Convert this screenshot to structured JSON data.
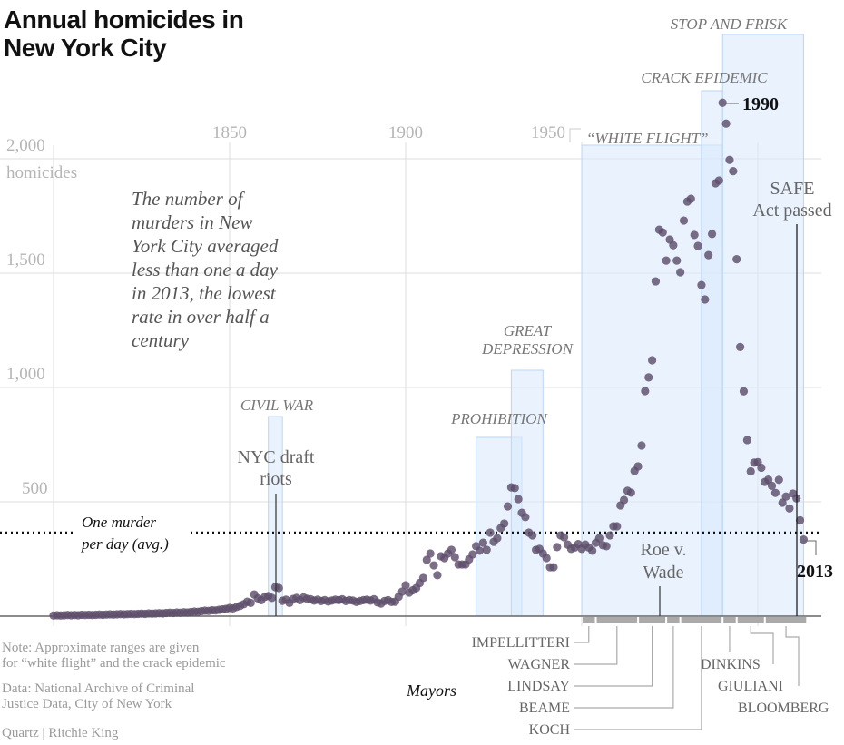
{
  "chart_data": {
    "type": "scatter",
    "title": "Annual homicides in New York City",
    "ylabel": "homicides",
    "xlim": [
      1797,
      2015
    ],
    "ylim": [
      0,
      2100
    ],
    "x_ticks": [
      "1850",
      "1900",
      "1950"
    ],
    "y_ticks": [
      "500",
      "1,000",
      "1,500",
      "2,000"
    ],
    "grid": true,
    "point_color": "#5e4e6b",
    "band_color": "#dbeafc",
    "start_year": 1800,
    "values": [
      3,
      4,
      3,
      4,
      5,
      4,
      5,
      4,
      6,
      5,
      6,
      5,
      6,
      7,
      6,
      7,
      8,
      7,
      8,
      9,
      8,
      9,
      10,
      9,
      10,
      11,
      10,
      12,
      11,
      12,
      13,
      12,
      14,
      15,
      14,
      16,
      15,
      17,
      16,
      18,
      20,
      19,
      22,
      24,
      23,
      26,
      25,
      28,
      30,
      32,
      36,
      34,
      40,
      45,
      52,
      63,
      58,
      95,
      78,
      70,
      84,
      88,
      80,
      127,
      123,
      67,
      72,
      58,
      75,
      80,
      70,
      82,
      76,
      74,
      68,
      72,
      66,
      70,
      64,
      68,
      72,
      70,
      74,
      66,
      70,
      68,
      62,
      66,
      70,
      72,
      68,
      74,
      60,
      55,
      66,
      70,
      62,
      63,
      85,
      107,
      135,
      103,
      113,
      123,
      145,
      167,
      246,
      274,
      222,
      179,
      262,
      254,
      274,
      290,
      258,
      226,
      226,
      226,
      248,
      270,
      306,
      286,
      321,
      290,
      365,
      325,
      341,
      385,
      405,
      480,
      563,
      560,
      512,
      452,
      433,
      365,
      353,
      290,
      294,
      274,
      254,
      214,
      214,
      302,
      353,
      345,
      313,
      294,
      300,
      315,
      294,
      313,
      300,
      286,
      321,
      341,
      310,
      306,
      353,
      393,
      393,
      484,
      508,
      548,
      540,
      635,
      655,
      746,
      984,
      1044,
      1119,
      1464,
      1690,
      1678,
      1555,
      1647,
      1622,
      1555,
      1504,
      1730,
      1813,
      1825,
      1667,
      1619,
      1448,
      1385,
      1579,
      1671,
      1893,
      1905,
      2245,
      2154,
      1995,
      1946,
      1561,
      1177,
      983,
      770,
      633,
      671,
      673,
      649,
      587,
      597,
      570,
      539,
      596,
      496,
      523,
      471,
      536,
      515,
      419,
      335
    ],
    "reference_line": {
      "value": 365,
      "label_line1": "One murder",
      "label_line2": "per day (avg.)"
    },
    "bands": [
      {
        "label": "CIVIL WAR",
        "start": 1861,
        "end": 1865
      },
      {
        "label": "PROHIBITION",
        "start": 1920,
        "end": 1933
      },
      {
        "label_line1": "GREAT",
        "label_line2": "DEPRESSION",
        "start": 1930,
        "end": 1939
      },
      {
        "label": "“WHITE FLIGHT”",
        "start": 1950,
        "end": 1990
      },
      {
        "label": "CRACK EPIDEMIC",
        "start": 1984,
        "end": 1990
      },
      {
        "label": "STOP AND FRISK",
        "start": 1990,
        "end": 2013
      }
    ],
    "annotations": {
      "draft_riots": {
        "line1": "NYC draft",
        "line2": "riots",
        "year": 1863
      },
      "roe": {
        "line1": "Roe v.",
        "line2": "Wade",
        "year": 1973
      },
      "safe": {
        "line1": "SAFE",
        "line2": "Act passed",
        "year": 2013
      },
      "peak": {
        "label": "1990",
        "year": 1990
      },
      "last": {
        "label": "2013",
        "year": 2013
      },
      "description": [
        "The number of",
        "murders in New",
        "York City averaged",
        "less than one a day",
        "in 2013, the lowest",
        "rate in over half a",
        "century"
      ]
    },
    "mayors_label": "Mayors",
    "mayors": [
      {
        "name": "IMPELLITTERI",
        "start": 1950,
        "end": 1953
      },
      {
        "name": "WAGNER",
        "start": 1954,
        "end": 1965
      },
      {
        "name": "LINDSAY",
        "start": 1966,
        "end": 1973
      },
      {
        "name": "BEAME",
        "start": 1974,
        "end": 1977
      },
      {
        "name": "KOCH",
        "start": 1978,
        "end": 1989
      },
      {
        "name": "DINKINS",
        "start": 1990,
        "end": 1993
      },
      {
        "name": "GIULIANI",
        "start": 1994,
        "end": 2001
      },
      {
        "name": "BLOOMBERG",
        "start": 2002,
        "end": 2013
      }
    ]
  },
  "notes": {
    "note_line1": "Note: Approximate ranges are given",
    "note_line2": "for “white flight” and the crack epidemic",
    "data_line1": "Data: National Archive of Criminal",
    "data_line2": "Justice Data, City of New York",
    "credit": "Quartz | Ritchie King"
  }
}
